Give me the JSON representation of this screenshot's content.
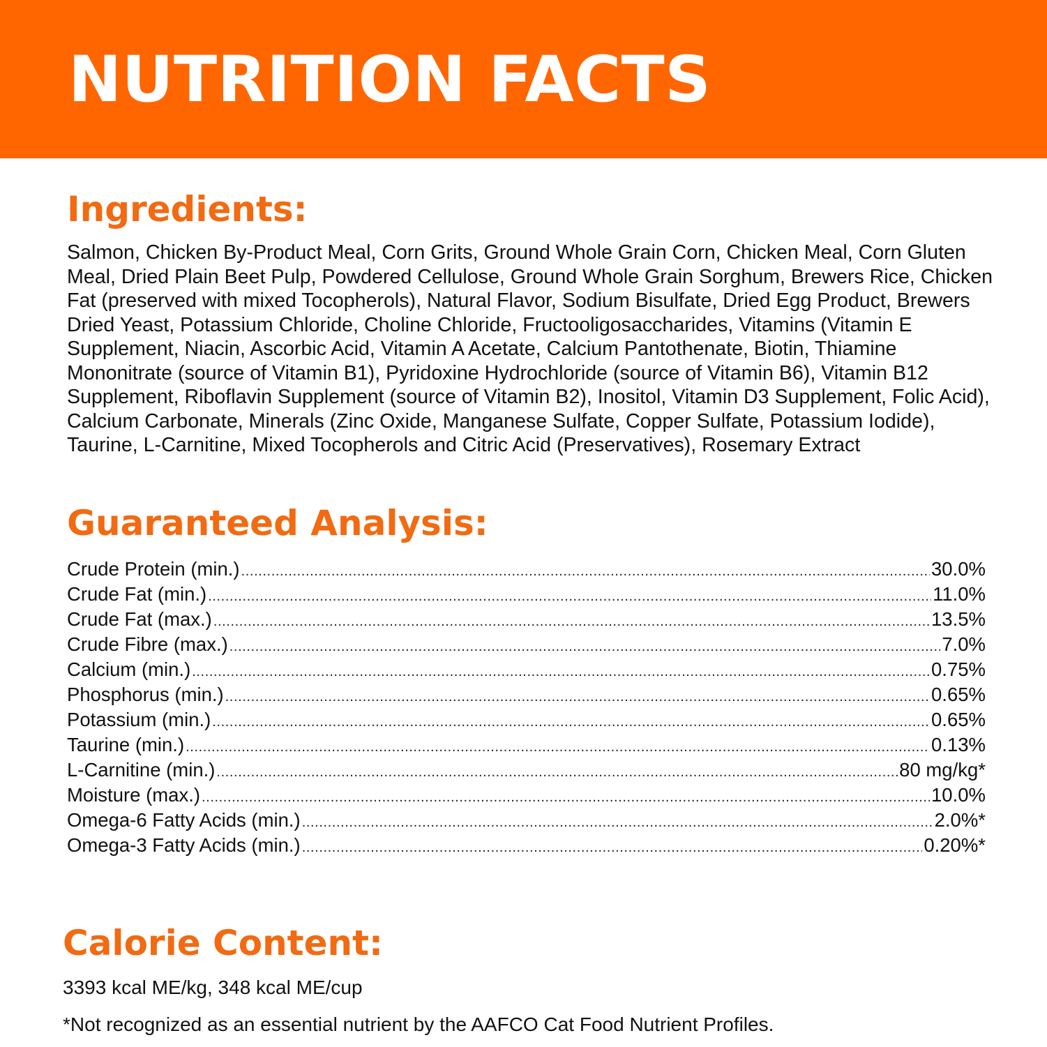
{
  "header": {
    "title": "NUTRITION FACTS",
    "background_color": "#ff6600",
    "text_color": "#ffffff"
  },
  "accent_color": "#f26a11",
  "ingredients": {
    "heading": "Ingredients:",
    "text": "Salmon, Chicken By-Product Meal, Corn Grits, Ground Whole Grain Corn, Chicken Meal, Corn Gluten Meal, Dried Plain Beet Pulp, Powdered Cellulose, Ground Whole Grain Sorghum, Brewers Rice, Chicken Fat (preserved with mixed Tocopherols), Natural Flavor, Sodium Bisulfate, Dried Egg Product, Brewers Dried Yeast, Potassium Chloride, Choline Chloride, Fructooligosaccharides, Vitamins (Vitamin E Supplement, Niacin, Ascorbic Acid, Vitamin A Acetate, Calcium Pantothenate, Biotin, Thiamine Mononitrate (source of Vitamin B1), Pyridoxine Hydrochloride (source of Vitamin B6), Vitamin B12 Supplement, Riboflavin Supplement (source of Vitamin B2), Inositol, Vitamin D3 Supplement, Folic Acid), Calcium Carbonate, Minerals (Zinc Oxide, Manganese Sulfate, Copper Sulfate, Potassium Iodide), Taurine, L-Carnitine, Mixed Tocopherols and Citric Acid (Preservatives), Rosemary Extract"
  },
  "guaranteed_analysis": {
    "heading": "Guaranteed Analysis:",
    "rows": [
      {
        "label": "Crude Protein (min.)",
        "value": "30.0%"
      },
      {
        "label": "Crude Fat (min.)",
        "value": "11.0%"
      },
      {
        "label": "Crude Fat (max.)",
        "value": "13.5%"
      },
      {
        "label": "Crude Fibre (max.)",
        "value": "7.0%"
      },
      {
        "label": "Calcium (min.)",
        "value": "0.75%"
      },
      {
        "label": "Phosphorus (min.)",
        "value": "0.65%"
      },
      {
        "label": "Potassium (min.)",
        "value": "0.65%"
      },
      {
        "label": "Taurine (min.)",
        "value": "0.13%"
      },
      {
        "label": "L-Carnitine (min.)",
        "value": "80 mg/kg*"
      },
      {
        "label": "Moisture (max.)",
        "value": "10.0%"
      },
      {
        "label": "Omega-6 Fatty Acids (min.)",
        "value": "2.0%*"
      },
      {
        "label": "Omega-3 Fatty Acids (min.)",
        "value": "0.20%*"
      }
    ]
  },
  "calorie_content": {
    "heading": "Calorie Content:",
    "text": "3393 kcal ME/kg, 348 kcal ME/cup"
  },
  "footnote": "*Not recognized as an essential nutrient by the AAFCO Cat Food Nutrient Profiles."
}
